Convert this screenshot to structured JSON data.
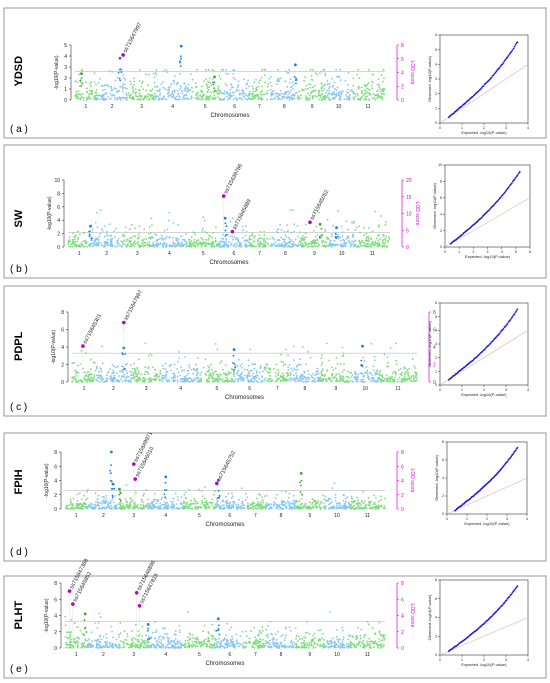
{
  "colors": {
    "chrom_odd": "#7fdc7f",
    "chrom_even": "#87c6f0",
    "peak_even": "#1a7fd6",
    "peak_odd": "#2eaa2e",
    "significant": "#c000c0",
    "lod_axis": "#e600e6",
    "threshold": "#aaaaaa",
    "qq_points": "#1a1adc",
    "qq_diag": "#e8b0b0",
    "panel_border": "#9a9a9a"
  },
  "chart_data": [
    {
      "type": "scatter",
      "panel_label": "( a )",
      "trait": "YDSD",
      "xlabel": "Chromosomes",
      "ylabel": "-log10(P-value)",
      "ylabel_right": "LOD score",
      "chromosomes": [
        "1",
        "2",
        "3",
        "4",
        "5",
        "6",
        "7",
        "8",
        "9",
        "10",
        "11"
      ],
      "ylim": [
        0,
        5
      ],
      "yticks": [
        0,
        1,
        2,
        3,
        4,
        5
      ],
      "lod_ticks": [
        0,
        2,
        4,
        6,
        8
      ],
      "threshold": 2.6,
      "baseline": 1.5,
      "peaks": [
        {
          "chrom": 2.75,
          "value": 3.8,
          "level": "minor"
        },
        {
          "chrom": 4.75,
          "value": 4.9,
          "level": "minor"
        },
        {
          "chrom": 8.9,
          "value": 3.2,
          "level": "minor"
        },
        {
          "chrom": 1.3,
          "value": 2.4,
          "level": "minor"
        },
        {
          "chrom": 5.8,
          "value": 2.1,
          "level": "minor"
        }
      ],
      "snps": [
        {
          "label": "ss715647997",
          "chrom": 2.85,
          "value": 4.1
        }
      ],
      "qq": {
        "xlabel": "Expected -log10(P-value)",
        "ylabel": "Observed -log10(P-value)",
        "xlim": [
          0,
          4
        ],
        "ylim": [
          0,
          6
        ],
        "xticks": [
          0,
          1,
          2,
          3,
          4
        ],
        "yticks": [
          0,
          1,
          2,
          3,
          4,
          5,
          6
        ]
      }
    },
    {
      "type": "scatter",
      "panel_label": "( b )",
      "trait": "SW",
      "xlabel": "Chromosomes",
      "ylabel": "-log10(P-value)",
      "ylabel_right": "LOD score",
      "chromosomes": [
        "1",
        "2",
        "3",
        "4",
        "5",
        "6",
        "7",
        "8",
        "9",
        "10",
        "11"
      ],
      "ylim": [
        0,
        10
      ],
      "yticks": [
        0,
        2,
        4,
        6,
        8,
        10
      ],
      "lod_ticks": [
        0,
        5,
        10,
        15,
        20
      ],
      "threshold": 2.2,
      "baseline": 1.6,
      "peaks": [
        {
          "chrom": 2.0,
          "value": 3.1,
          "level": "minor"
        },
        {
          "chrom": 6.2,
          "value": 4.3,
          "level": "minor"
        },
        {
          "chrom": 10.3,
          "value": 2.9,
          "level": "minor"
        },
        {
          "chrom": 9.7,
          "value": 3.4,
          "level": "minor"
        }
      ],
      "snps": [
        {
          "label": "ss715639786",
          "chrom": 6.15,
          "value": 7.6
        },
        {
          "label": "ss715645689",
          "chrom": 6.45,
          "value": 2.3
        },
        {
          "label": "ss715645052",
          "chrom": 9.35,
          "value": 3.7
        }
      ],
      "qq": {
        "xlabel": "Expected -log10(P-value)",
        "ylabel": "Observed -log10(P-value)",
        "xlim": [
          0,
          6
        ],
        "ylim": [
          0,
          10
        ],
        "xticks": [
          0,
          1,
          2,
          3,
          4,
          5,
          6
        ],
        "yticks": [
          0,
          2,
          4,
          6,
          8,
          10
        ]
      }
    },
    {
      "type": "scatter",
      "panel_label": "( c )",
      "trait": "PDPL",
      "xlabel": "Chromosomes",
      "ylabel": "-log10(P-value)",
      "ylabel_right": "LOD score",
      "chromosomes": [
        "1",
        "2",
        "3",
        "4",
        "5",
        "6",
        "7",
        "8",
        "9",
        "10",
        "11"
      ],
      "ylim": [
        0,
        8
      ],
      "yticks": [
        0,
        2,
        4,
        6,
        8
      ],
      "lod_ticks": [
        0,
        2,
        4,
        6,
        8
      ],
      "threshold": 3.3,
      "baseline": 1.4,
      "peaks": [
        {
          "chrom": 6.0,
          "value": 3.7,
          "level": "minor"
        },
        {
          "chrom": 10.4,
          "value": 4.1,
          "level": "minor"
        },
        {
          "chrom": 2.8,
          "value": 3.9,
          "level": "minor"
        }
      ],
      "snps": [
        {
          "label": "ss715645301",
          "chrom": 1.45,
          "value": 4.1
        },
        {
          "label": "ss715647997",
          "chrom": 2.8,
          "value": 6.8
        }
      ],
      "qq": {
        "xlabel": "Expected -log10(P-value)",
        "ylabel": "Observed -log10(P-value)",
        "xlim": [
          0,
          4
        ],
        "ylim": [
          0,
          6
        ],
        "xticks": [
          0,
          1,
          2,
          3,
          4
        ],
        "yticks": [
          0,
          1,
          2,
          3,
          4,
          5,
          6
        ]
      }
    },
    {
      "type": "scatter",
      "panel_label": "( d )",
      "trait": "FPIH",
      "xlabel": "Chromosomes",
      "ylabel": "-log10(P-value)",
      "ylabel_right": "LOD score",
      "chromosomes": [
        "1",
        "2",
        "3",
        "4",
        "5",
        "6",
        "7",
        "8",
        "9",
        "10",
        "11"
      ],
      "ylim": [
        0,
        8
      ],
      "yticks": [
        0,
        2,
        4,
        6,
        8
      ],
      "lod_ticks": [
        0,
        2,
        4,
        6,
        8
      ],
      "threshold": 2.6,
      "baseline": 1.0,
      "peaks": [
        {
          "chrom": 2.75,
          "value": 8.0,
          "level": "minor"
        },
        {
          "chrom": 2.8,
          "value": 3.5,
          "level": "minor"
        },
        {
          "chrom": 3.0,
          "value": 2.8,
          "level": "minor"
        },
        {
          "chrom": 4.5,
          "value": 4.5,
          "level": "minor"
        },
        {
          "chrom": 9.2,
          "value": 5.0,
          "level": "minor"
        },
        {
          "chrom": 6.1,
          "value": 4.0,
          "level": "minor"
        }
      ],
      "snps": [
        {
          "label": "ss715649971",
          "chrom": 3.5,
          "value": 6.3
        },
        {
          "label": "ss715646010",
          "chrom": 3.55,
          "value": 4.2
        },
        {
          "label": "ss715645752",
          "chrom": 6.05,
          "value": 3.6
        }
      ],
      "qq": {
        "xlabel": "Expected -log10(P-value)",
        "ylabel": "Observed -log10(P-value)",
        "xlim": [
          0,
          4
        ],
        "ylim": [
          0,
          8
        ],
        "xticks": [
          0,
          1,
          2,
          3,
          4
        ],
        "yticks": [
          0,
          2,
          4,
          6,
          8
        ]
      }
    },
    {
      "type": "scatter",
      "panel_label": "( e )",
      "trait": "PLHT",
      "xlabel": "Chromosomes",
      "ylabel": "-log10(P-value)",
      "ylabel_right": "LOD score",
      "chromosomes": [
        "1",
        "2",
        "3",
        "4",
        "5",
        "6",
        "7",
        "8",
        "9",
        "10",
        "11"
      ],
      "ylim": [
        0,
        8
      ],
      "yticks": [
        0,
        2,
        4,
        6,
        8
      ],
      "lod_ticks": [
        0,
        2,
        4,
        6,
        8
      ],
      "threshold": 3.3,
      "baseline": 1.4,
      "peaks": [
        {
          "chrom": 1.9,
          "value": 4.2,
          "level": "minor"
        },
        {
          "chrom": 6.1,
          "value": 3.6,
          "level": "minor"
        },
        {
          "chrom": 4.0,
          "value": 2.9,
          "level": "minor"
        }
      ],
      "snps": [
        {
          "label": "ss715647368",
          "chrom": 1.2,
          "value": 7.0
        },
        {
          "label": "ss715645852",
          "chrom": 1.35,
          "value": 5.4
        },
        {
          "label": "ss715646896",
          "chrom": 3.6,
          "value": 6.8
        },
        {
          "label": "ss715647819",
          "chrom": 3.7,
          "value": 5.2
        }
      ],
      "qq": {
        "xlabel": "Expected -log10(P-value)",
        "ylabel": "Observed -log10(P-value)",
        "xlim": [
          0,
          4
        ],
        "ylim": [
          0,
          8
        ],
        "xticks": [
          0,
          1,
          2,
          3,
          4
        ],
        "yticks": [
          0,
          2,
          4,
          6,
          8
        ]
      }
    }
  ]
}
